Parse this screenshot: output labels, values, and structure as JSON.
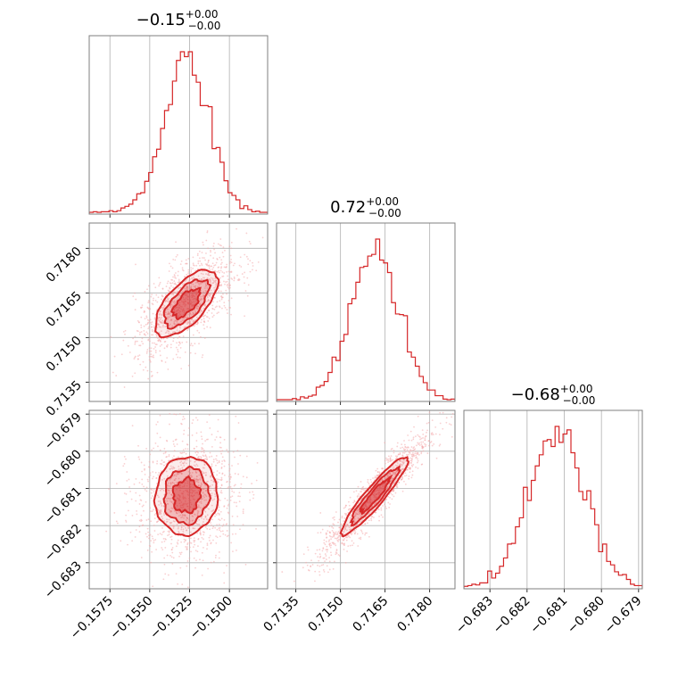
{
  "chart_data": {
    "type": "corner",
    "color": "#d62728",
    "light_color": "#f4a9ab",
    "grid": true,
    "parameters": [
      {
        "title_main": "−0.15",
        "title_sup": "+0.00",
        "title_sub": "−0.00",
        "mean": -0.1527,
        "std": 0.0014,
        "range": [
          -0.1588,
          -0.1476
        ],
        "ticks": [
          -0.1575,
          -0.155,
          -0.1525,
          -0.15
        ],
        "tick_labels": [
          "−0.1575",
          "−0.1550",
          "−0.1525",
          "−0.1500"
        ]
      },
      {
        "title_main": "0.72",
        "title_sup": "+0.00",
        "title_sub": "−0.00",
        "mean": 0.71615,
        "std": 0.0008,
        "range": [
          0.71285,
          0.71885
        ],
        "ticks": [
          0.7135,
          0.715,
          0.7165,
          0.718
        ],
        "tick_labels": [
          "0.7135",
          "0.7150",
          "0.7165",
          "0.7180"
        ]
      },
      {
        "title_main": "−0.68",
        "title_sup": "+0.00",
        "title_sub": "−0.00",
        "mean": -0.6812,
        "std": 0.00075,
        "range": [
          -0.6837,
          -0.6789
        ],
        "ticks": [
          -0.683,
          -0.682,
          -0.681,
          -0.68,
          -0.679
        ],
        "tick_labels": [
          "−0.683",
          "−0.682",
          "−0.681",
          "−0.680",
          "−0.679"
        ]
      }
    ],
    "correlations": {
      "1_0": 0.65,
      "2_0": 0.05,
      "2_1": 0.93
    }
  }
}
